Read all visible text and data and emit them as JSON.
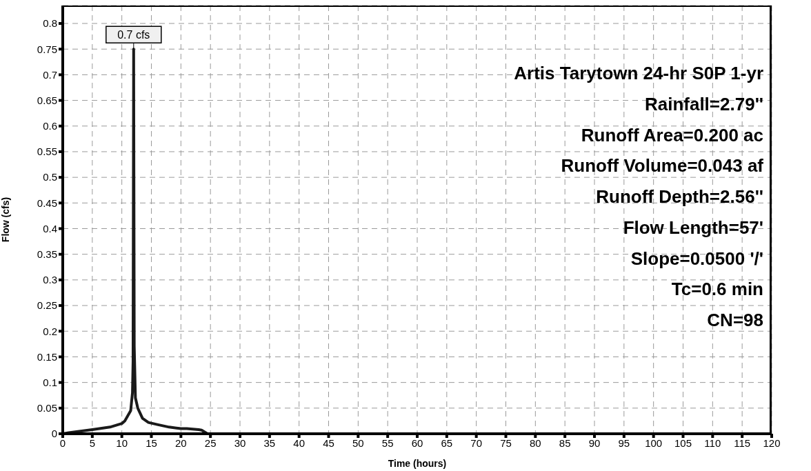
{
  "chart_data": {
    "type": "line",
    "xlabel": "Time  (hours)",
    "ylabel": "Flow  (cfs)",
    "x": [
      0,
      1,
      5,
      8,
      10,
      10.5,
      11,
      11.5,
      11.8,
      11.9,
      12,
      12.1,
      12.3,
      12.7,
      13.5,
      14.5,
      16,
      18,
      20,
      21,
      23,
      23.5,
      24.5,
      120
    ],
    "series": [
      {
        "color": "#1a1a1a",
        "values": [
          0,
          0.002,
          0.008,
          0.013,
          0.02,
          0.025,
          0.035,
          0.045,
          0.08,
          0.14,
          0.75,
          0.17,
          0.07,
          0.05,
          0.03,
          0.022,
          0.018,
          0.013,
          0.01,
          0.01,
          0.008,
          0.007,
          0,
          0
        ]
      }
    ],
    "xlim": [
      0,
      120
    ],
    "xticks": [
      0,
      5,
      10,
      15,
      20,
      25,
      30,
      35,
      40,
      45,
      50,
      55,
      60,
      65,
      70,
      75,
      80,
      85,
      90,
      95,
      100,
      105,
      110,
      115,
      120
    ],
    "ylim": [
      0,
      0.835
    ],
    "yticks": [
      0,
      0.05,
      0.1,
      0.15,
      0.2,
      0.25,
      0.3,
      0.35,
      0.4,
      0.45,
      0.5,
      0.55,
      0.6,
      0.65,
      0.7,
      0.75,
      0.8
    ],
    "grid": true,
    "marker": "none",
    "line_style": "solid",
    "annotations": [
      {
        "text": "0.7 cfs",
        "x": 12,
        "y": 0.75
      },
      "Artis Tarytown 24-hr S0P 1-yr",
      "Rainfall=2.79''",
      "Runoff Area=0.200 ac",
      "Runoff Volume=0.043 af",
      "Runoff Depth=2.56''",
      "Flow Length=57'",
      "Slope=0.0500 '/'",
      "Tc=0.6 min",
      "CN=98"
    ]
  }
}
